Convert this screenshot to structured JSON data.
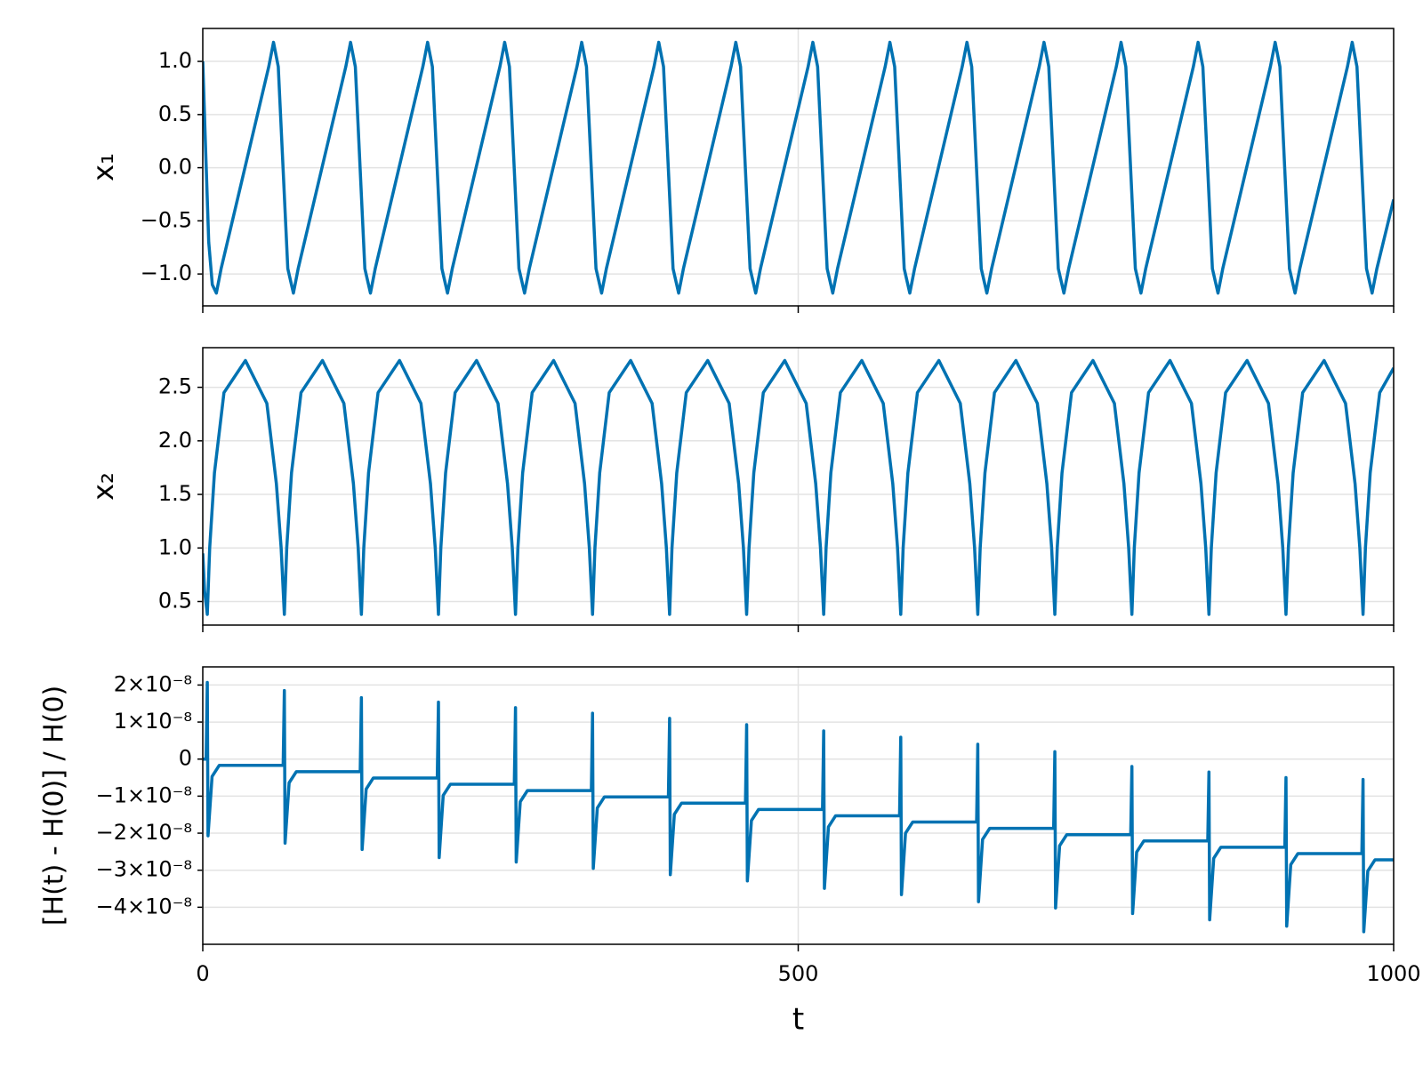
{
  "chart_data": [
    {
      "type": "line",
      "ylabel": "x₁",
      "x": [
        0,
        2,
        5,
        8,
        11.4,
        15.4,
        55.4,
        59.4,
        63.4,
        67.4,
        71.4,
        76.1,
        80.1,
        120.1,
        124.1,
        128.1,
        132.1,
        136.1,
        140.8,
        144.8,
        184.8,
        188.8,
        192.8,
        196.8,
        200.8,
        205.5,
        209.5,
        249.5,
        253.5,
        257.5,
        261.5,
        265.5,
        270.2,
        274.2,
        314.2,
        318.2,
        322.2,
        326.2,
        330.2,
        334.9,
        338.9,
        378.9,
        382.9,
        386.9,
        390.9,
        394.9,
        399.6,
        403.6,
        443.6,
        447.6,
        451.6,
        455.6,
        459.6,
        464.3,
        468.3,
        508.3,
        512.3,
        516.3,
        520.3,
        524.3,
        529,
        533,
        573,
        577,
        581,
        585,
        589,
        593.7,
        597.7,
        637.7,
        641.7,
        645.7,
        649.7,
        653.7,
        658.4,
        662.4,
        702.4,
        706.4,
        710.4,
        714.4,
        718.4,
        723.1,
        727.1,
        767.1,
        771.1,
        775.1,
        779.1,
        783.1,
        787.8,
        791.8,
        831.8,
        835.8,
        839.8,
        843.8,
        847.8,
        852.5,
        856.5,
        896.5,
        900.5,
        904.5,
        908.5,
        912.5,
        917.2,
        921.2,
        961.2,
        965.2,
        969.2,
        973.2,
        977.2,
        981.9,
        985.9,
        1000
      ],
      "series": [
        {
          "color": "#0072b2",
          "values": [
            1.0,
            0.3,
            -0.7,
            -1.1,
            -1.18,
            -0.95,
            0.95,
            1.18,
            0.95,
            0.0,
            -0.95,
            -1.18,
            -0.95,
            0.95,
            1.18,
            0.95,
            0.0,
            -0.95,
            -1.18,
            -0.95,
            0.95,
            1.18,
            0.95,
            0.0,
            -0.95,
            -1.18,
            -0.95,
            0.95,
            1.18,
            0.95,
            0.0,
            -0.95,
            -1.18,
            -0.95,
            0.95,
            1.18,
            0.95,
            0.0,
            -0.95,
            -1.18,
            -0.95,
            0.95,
            1.18,
            0.95,
            0.0,
            -0.95,
            -1.18,
            -0.95,
            0.95,
            1.18,
            0.95,
            0.0,
            -0.95,
            -1.18,
            -0.95,
            0.95,
            1.18,
            0.95,
            0.0,
            -0.95,
            -1.18,
            -0.95,
            0.95,
            1.18,
            0.95,
            0.0,
            -0.95,
            -1.18,
            -0.95,
            0.95,
            1.18,
            0.95,
            0.0,
            -0.95,
            -1.18,
            -0.95,
            0.95,
            1.18,
            0.95,
            0.0,
            -0.95,
            -1.18,
            -0.95,
            0.95,
            1.18,
            0.95,
            0.0,
            -0.95,
            -1.18,
            -0.95,
            0.95,
            1.18,
            0.95,
            0.0,
            -0.95,
            -1.18,
            -0.95,
            0.95,
            1.18,
            0.95,
            0.0,
            -0.95,
            -1.18,
            -0.95,
            0.95,
            1.18,
            0.95,
            0.0,
            -0.95,
            -1.18,
            -0.95,
            -0.3
          ]
        }
      ],
      "xlim": [
        0,
        1000
      ],
      "xticks": [
        0,
        500,
        1000
      ],
      "ylim": [
        -1.3,
        1.31
      ],
      "yticks": [
        {
          "value": 1.0,
          "label": "1.0"
        },
        {
          "value": 0.5,
          "label": "0.5"
        },
        {
          "value": 0.0,
          "label": "0.0"
        },
        {
          "value": -0.5,
          "label": "−0.5"
        },
        {
          "value": -1.0,
          "label": "−1.0"
        }
      ],
      "grid": true
    },
    {
      "type": "line",
      "ylabel": "x₂",
      "x": [
        0,
        1.5,
        3.8,
        5.8,
        9.8,
        17.8,
        35.8,
        53.8,
        61.8,
        65.8,
        68.5,
        70.5,
        74.5,
        82.5,
        100.5,
        118.5,
        126.5,
        130.5,
        133.2,
        135.2,
        139.2,
        147.2,
        165.2,
        183.2,
        191.2,
        195.2,
        197.9,
        199.9,
        203.9,
        211.9,
        229.9,
        247.9,
        255.9,
        259.9,
        262.6,
        264.6,
        268.6,
        276.6,
        294.6,
        312.6,
        320.6,
        324.6,
        327.3,
        329.3,
        333.3,
        341.3,
        359.3,
        377.3,
        385.3,
        389.3,
        392,
        394,
        398,
        406,
        424,
        442,
        450,
        454,
        456.7,
        458.7,
        462.7,
        470.7,
        488.7,
        506.7,
        514.7,
        518.7,
        521.4,
        523.4,
        527.4,
        535.4,
        553.4,
        571.4,
        579.4,
        583.4,
        586.1,
        588.1,
        592.1,
        600.1,
        618.1,
        636.1,
        644.1,
        648.1,
        650.8,
        652.8,
        656.8,
        664.8,
        682.8,
        700.8,
        708.8,
        712.8,
        715.5,
        717.5,
        721.5,
        729.5,
        747.5,
        765.5,
        773.5,
        777.5,
        780.2,
        782.2,
        786.2,
        794.2,
        812.2,
        830.2,
        838.2,
        842.2,
        844.9,
        846.9,
        850.9,
        858.9,
        876.9,
        894.9,
        902.9,
        906.9,
        909.6,
        911.6,
        915.6,
        923.6,
        941.6,
        959.6,
        967.6,
        971.6,
        974.3,
        976.3,
        980.3,
        988.3,
        1000
      ],
      "series": [
        {
          "color": "#0072b2",
          "values": [
            0.95,
            0.6,
            0.38,
            1.0,
            1.7,
            2.45,
            2.75,
            2.35,
            1.6,
            1.0,
            0.38,
            1.0,
            1.7,
            2.45,
            2.75,
            2.35,
            1.6,
            1.0,
            0.38,
            1.0,
            1.7,
            2.45,
            2.75,
            2.35,
            1.6,
            1.0,
            0.38,
            1.0,
            1.7,
            2.45,
            2.75,
            2.35,
            1.6,
            1.0,
            0.38,
            1.0,
            1.7,
            2.45,
            2.75,
            2.35,
            1.6,
            1.0,
            0.38,
            1.0,
            1.7,
            2.45,
            2.75,
            2.35,
            1.6,
            1.0,
            0.38,
            1.0,
            1.7,
            2.45,
            2.75,
            2.35,
            1.6,
            1.0,
            0.38,
            1.0,
            1.7,
            2.45,
            2.75,
            2.35,
            1.6,
            1.0,
            0.38,
            1.0,
            1.7,
            2.45,
            2.75,
            2.35,
            1.6,
            1.0,
            0.38,
            1.0,
            1.7,
            2.45,
            2.75,
            2.35,
            1.6,
            1.0,
            0.38,
            1.0,
            1.7,
            2.45,
            2.75,
            2.35,
            1.6,
            1.0,
            0.38,
            1.0,
            1.7,
            2.45,
            2.75,
            2.35,
            1.6,
            1.0,
            0.38,
            1.0,
            1.7,
            2.45,
            2.75,
            2.35,
            1.6,
            1.0,
            0.38,
            1.0,
            1.7,
            2.45,
            2.75,
            2.35,
            1.6,
            1.0,
            0.38,
            1.0,
            1.7,
            2.45,
            2.75,
            2.35,
            1.6,
            1.0,
            0.38,
            1.0,
            1.7,
            2.45,
            2.68
          ]
        }
      ],
      "xlim": [
        0,
        1000
      ],
      "xticks": [
        0,
        500,
        1000
      ],
      "ylim": [
        0.28,
        2.87
      ],
      "yticks": [
        2.5,
        {
          "value": 2.0,
          "label": "2.0"
        },
        1.5,
        {
          "value": 1.0,
          "label": "1.0"
        },
        0.5
      ],
      "grid": true
    },
    {
      "type": "line",
      "ylabel": "[H(t) - H(0)] / H(0)",
      "xlabel": "t",
      "x": [
        0,
        2.8,
        3.8,
        4.4,
        7.8,
        13.8,
        67.5,
        68.5,
        69.1,
        72.5,
        78.5,
        132.2,
        133.2,
        133.8,
        137.2,
        143.2,
        196.9,
        197.9,
        198.5,
        201.9,
        207.9,
        261.6,
        262.6,
        263.2,
        266.6,
        272.6,
        326.3,
        327.3,
        327.9,
        331.3,
        337.3,
        391,
        392,
        392.6,
        396,
        402,
        455.7,
        456.7,
        457.3,
        460.7,
        466.7,
        520.4,
        521.4,
        522,
        525.4,
        531.4,
        585.1,
        586.1,
        586.7,
        590.1,
        596.1,
        649.8,
        650.8,
        651.4,
        654.8,
        660.8,
        714.5,
        715.5,
        716.1,
        719.5,
        725.5,
        779.2,
        780.2,
        780.8,
        784.2,
        790.2,
        843.9,
        844.9,
        845.5,
        848.9,
        854.9,
        908.6,
        909.6,
        910.2,
        913.6,
        919.6,
        973.3,
        974.3,
        974.9,
        978.3,
        984.3,
        1000
      ],
      "series": [
        {
          "color": "#0072b2",
          "values": [
            0,
            0,
            2.07e-08,
            -2.07e-08,
            -4.7e-09,
            -1.7e-09,
            -1.7e-09,
            1.85e-08,
            -2.27e-08,
            -6.4e-09,
            -3.4e-09,
            -3.4e-09,
            1.66e-08,
            -2.44e-08,
            -8.1e-09,
            -5.1e-09,
            -5.1e-09,
            1.54e-08,
            -2.66e-08,
            -9.8e-09,
            -6.8e-09,
            -6.8e-09,
            1.39e-08,
            -2.78e-08,
            -1.15e-08,
            -8.5e-09,
            -8.5e-09,
            1.24e-08,
            -2.95e-08,
            -1.32e-08,
            -1.02e-08,
            -1.02e-08,
            1.1e-08,
            -3.12e-08,
            -1.49e-08,
            -1.19e-08,
            -1.19e-08,
            9.3e-09,
            -3.29e-08,
            -1.66e-08,
            -1.36e-08,
            -1.36e-08,
            7.6e-09,
            -3.49e-08,
            -1.83e-08,
            -1.53e-08,
            -1.53e-08,
            5.9e-09,
            -3.66e-08,
            -2e-08,
            -1.7e-08,
            -1.7e-08,
            4e-09,
            -3.85e-08,
            -2.17e-08,
            -1.87e-08,
            -1.87e-08,
            2e-09,
            -4.02e-08,
            -2.34e-08,
            -2.04e-08,
            -2.04e-08,
            -2e-09,
            -4.17e-08,
            -2.51e-08,
            -2.21e-08,
            -2.21e-08,
            -3.5e-09,
            -4.34e-08,
            -2.68e-08,
            -2.38e-08,
            -2.38e-08,
            -5e-09,
            -4.51e-08,
            -2.85e-08,
            -2.55e-08,
            -2.55e-08,
            -5.5e-09,
            -4.66e-08,
            -3.02e-08,
            -2.72e-08,
            -2.72e-08
          ]
        }
      ],
      "xlim": [
        0,
        1000
      ],
      "xticks": [
        0,
        500,
        1000
      ],
      "ylim": [
        -5e-08,
        2.49e-08
      ],
      "yticks": [
        {
          "value": 2e-08,
          "label": "2×10⁻⁸"
        },
        {
          "value": 1e-08,
          "label": "1×10⁻⁸"
        },
        0,
        {
          "value": -1e-08,
          "label": "−1×10⁻⁸"
        },
        {
          "value": -2e-08,
          "label": "−2×10⁻⁸"
        },
        {
          "value": -3e-08,
          "label": "−3×10⁻⁸"
        },
        {
          "value": -4e-08,
          "label": "−4×10⁻⁸"
        }
      ],
      "grid": true
    }
  ]
}
